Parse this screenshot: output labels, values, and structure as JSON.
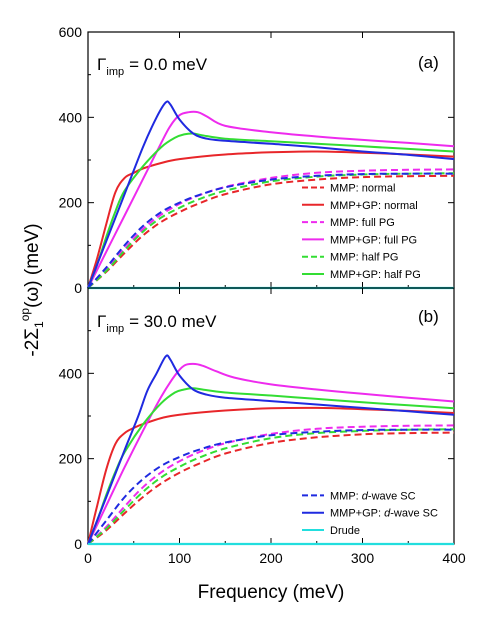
{
  "chart_data": {
    "type": "line",
    "xlabel": "Frequency (meV)",
    "ylabel_main": "-2Σ",
    "ylabel_sub": "1",
    "ylabel_sup": "op",
    "ylabel_tail": "(ω) (meV)",
    "xlim": [
      0,
      400
    ],
    "x_ticks": [
      "0",
      "100",
      "200",
      "300",
      "400"
    ],
    "grid": false,
    "panels": [
      {
        "panel_label": "(a)",
        "gamma_symbol": "Γ",
        "gamma_sub": "imp",
        "gamma_value": "= 0.0 meV",
        "ylim": [
          0,
          600
        ],
        "y_ticks": [
          "0",
          "200",
          "400",
          "600"
        ],
        "legend_position": "lower-right",
        "legend": [
          {
            "label": "MMP: normal",
            "color": "#e8262a",
            "dash": true
          },
          {
            "label": "MMP+GP: normal",
            "color": "#e8262a",
            "dash": false
          },
          {
            "label": "MMP: full PG",
            "color": "#ee2bee",
            "dash": true
          },
          {
            "label": "MMP+GP: full PG",
            "color": "#ee2bee",
            "dash": false
          },
          {
            "label": "MMP: half PG",
            "color": "#33dd33",
            "dash": true
          },
          {
            "label": "MMP+GP: half PG",
            "color": "#33dd33",
            "dash": false
          }
        ],
        "series": [
          {
            "name": "MMP: normal",
            "color": "#e8262a",
            "dash": true,
            "x": [
              0,
              20,
              40,
              60,
              80,
              100,
              120,
              150,
              200,
              250,
              300,
              350,
              400
            ],
            "y": [
              0,
              38,
              82,
              123,
              155,
              178,
              197,
              220,
              243,
              254,
              260,
              262,
              263
            ]
          },
          {
            "name": "MMP+GP: normal",
            "color": "#e8262a",
            "dash": false,
            "x": [
              0,
              10,
              20,
              30,
              40,
              50,
              60,
              80,
              100,
              150,
              200,
              250,
              300,
              350,
              400
            ],
            "y": [
              0,
              70,
              150,
              225,
              258,
              270,
              280,
              293,
              302,
              313,
              318,
              320,
              317,
              313,
              308
            ]
          },
          {
            "name": "MMP: full PG",
            "color": "#ee2bee",
            "dash": true,
            "x": [
              0,
              20,
              40,
              60,
              80,
              100,
              120,
              150,
              200,
              250,
              300,
              350,
              400
            ],
            "y": [
              0,
              43,
              92,
              138,
              172,
              197,
              216,
              237,
              258,
              270,
              275,
              277,
              278
            ]
          },
          {
            "name": "MMP+GP: full PG",
            "color": "#ee2bee",
            "dash": false,
            "x": [
              0,
              20,
              40,
              60,
              80,
              90,
              100,
              110,
              120,
              130,
              150,
              200,
              250,
              300,
              350,
              400
            ],
            "y": [
              0,
              85,
              170,
              255,
              340,
              380,
              405,
              412,
              412,
              402,
              380,
              365,
              355,
              347,
              340,
              332
            ]
          },
          {
            "name": "MMP: half PG",
            "color": "#33dd33",
            "dash": true,
            "x": [
              0,
              20,
              40,
              60,
              80,
              100,
              120,
              150,
              200,
              250,
              300,
              350,
              400
            ],
            "y": [
              0,
              40,
              88,
              132,
              165,
              188,
              207,
              228,
              250,
              261,
              266,
              268,
              269
            ]
          },
          {
            "name": "MMP+GP: half PG",
            "color": "#33dd33",
            "dash": false,
            "x": [
              0,
              10,
              20,
              30,
              40,
              60,
              80,
              95,
              105,
              115,
              125,
              150,
              200,
              250,
              300,
              350,
              400
            ],
            "y": [
              0,
              55,
              120,
              180,
              228,
              285,
              330,
              352,
              360,
              362,
              358,
              350,
              344,
              338,
              332,
              326,
              320
            ]
          },
          {
            "name": "MMP: d-wave SC",
            "color": "#1f2ae0",
            "dash": true,
            "x": [
              0,
              20,
              40,
              60,
              80,
              100,
              120,
              150,
              200,
              250,
              300,
              350,
              400
            ],
            "y": [
              0,
              48,
              100,
              145,
              178,
              200,
              217,
              236,
              254,
              263,
              267,
              268,
              268
            ]
          },
          {
            "name": "MMP+GP: d-wave SC",
            "color": "#1f2ae0",
            "dash": false,
            "x": [
              0,
              20,
              40,
              60,
              75,
              85,
              90,
              100,
              115,
              130,
              150,
              200,
              250,
              300,
              350,
              400
            ],
            "y": [
              0,
              110,
              220,
              330,
              400,
              435,
              430,
              395,
              362,
              350,
              345,
              338,
              330,
              320,
              312,
              302
            ]
          },
          {
            "name": "Drude",
            "color": "#22dede",
            "dash": false,
            "x": [
              0,
              400
            ],
            "y": [
              0,
              0
            ]
          }
        ]
      },
      {
        "panel_label": "(b)",
        "gamma_symbol": "Γ",
        "gamma_sub": "imp",
        "gamma_value": "= 30.0 meV",
        "ylim": [
          0,
          600
        ],
        "y_ticks": [
          "0",
          "200",
          "400"
        ],
        "legend_position": "lower-right",
        "legend": [
          {
            "label_prefix": "MMP: ",
            "label_italic": "d",
            "label_suffix": "-wave SC",
            "color": "#1f2ae0",
            "dash": true
          },
          {
            "label_prefix": "MMP+GP: ",
            "label_italic": "d",
            "label_suffix": "-wave SC",
            "color": "#1f2ae0",
            "dash": false
          },
          {
            "label_prefix": "Drude",
            "label_italic": "",
            "label_suffix": "",
            "color": "#22dede",
            "dash": false
          }
        ],
        "series": [
          {
            "name": "MMP: normal",
            "color": "#e8262a",
            "dash": true,
            "x": [
              0,
              20,
              40,
              60,
              80,
              100,
              120,
              150,
              200,
              250,
              300,
              350,
              400
            ],
            "y": [
              0,
              32,
              72,
              110,
              142,
              167,
              187,
              212,
              237,
              250,
              257,
              260,
              261
            ]
          },
          {
            "name": "MMP+GP: normal",
            "color": "#e8262a",
            "dash": false,
            "x": [
              0,
              10,
              20,
              30,
              40,
              50,
              60,
              80,
              100,
              150,
              200,
              250,
              300,
              350,
              400
            ],
            "y": [
              0,
              90,
              175,
              235,
              260,
              272,
              281,
              295,
              303,
              313,
              318,
              319,
              316,
              312,
              307
            ]
          },
          {
            "name": "MMP: full PG",
            "color": "#ee2bee",
            "dash": true,
            "x": [
              0,
              20,
              40,
              60,
              80,
              100,
              120,
              150,
              200,
              250,
              300,
              350,
              400
            ],
            "y": [
              0,
              40,
              88,
              133,
              168,
              194,
              214,
              236,
              258,
              270,
              275,
              277,
              278
            ]
          },
          {
            "name": "MMP+GP: full PG",
            "color": "#ee2bee",
            "dash": false,
            "x": [
              0,
              20,
              40,
              60,
              80,
              95,
              105,
              115,
              125,
              140,
              160,
              200,
              250,
              300,
              350,
              400
            ],
            "y": [
              0,
              90,
              180,
              265,
              345,
              395,
              418,
              422,
              418,
              405,
              390,
              374,
              362,
              352,
              343,
              334
            ]
          },
          {
            "name": "MMP: half PG",
            "color": "#33dd33",
            "dash": true,
            "x": [
              0,
              20,
              40,
              60,
              80,
              100,
              120,
              150,
              200,
              250,
              300,
              350,
              400
            ],
            "y": [
              0,
              36,
              80,
              122,
              156,
              181,
              201,
              224,
              248,
              260,
              265,
              268,
              269
            ]
          },
          {
            "name": "MMP+GP: half PG",
            "color": "#33dd33",
            "dash": false,
            "x": [
              0,
              10,
              20,
              30,
              40,
              60,
              80,
              95,
              105,
              115,
              125,
              150,
              200,
              250,
              300,
              350,
              400
            ],
            "y": [
              0,
              55,
              115,
              170,
              215,
              280,
              330,
              355,
              362,
              365,
              362,
              355,
              348,
              340,
              332,
              325,
              318
            ]
          },
          {
            "name": "MMP: d-wave SC",
            "color": "#1f2ae0",
            "dash": true,
            "x": [
              0,
              20,
              40,
              60,
              80,
              100,
              120,
              150,
              200,
              250,
              300,
              350,
              400
            ],
            "y": [
              0,
              55,
              110,
              152,
              183,
              204,
              220,
              238,
              255,
              263,
              267,
              268,
              268
            ]
          },
          {
            "name": "MMP+GP: d-wave SC",
            "color": "#1f2ae0",
            "dash": false,
            "x": [
              0,
              20,
              40,
              55,
              65,
              75,
              85,
              90,
              100,
              115,
              130,
              150,
              200,
              250,
              300,
              350,
              400
            ],
            "y": [
              0,
              110,
              220,
              300,
              360,
              400,
              440,
              432,
              395,
              362,
              350,
              343,
              335,
              327,
              319,
              311,
              303
            ]
          },
          {
            "name": "Drude",
            "color": "#22dede",
            "dash": false,
            "x": [
              0,
              400
            ],
            "y": [
              0,
              0
            ]
          }
        ]
      }
    ]
  }
}
